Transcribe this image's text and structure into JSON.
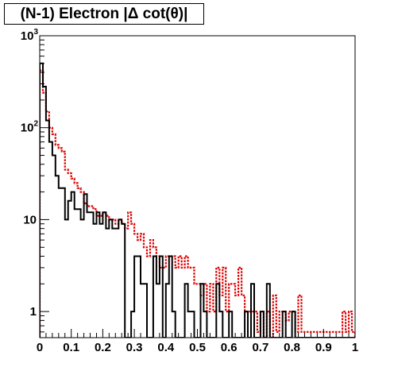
{
  "chart_data": {
    "type": "line",
    "title": "(N-1) Electron |Δ cot(θ)|",
    "xlabel": "",
    "ylabel": "",
    "x_range": [
      0,
      1
    ],
    "y_range": [
      0.52,
      1000
    ],
    "y_scale": "log",
    "grid": false,
    "legend": "none",
    "x_ticks": [
      "0",
      "0.1",
      "0.2",
      "0.3",
      "0.4",
      "0.5",
      "0.6",
      "0.7",
      "0.8",
      "0.9",
      "1"
    ],
    "y_ticks": [
      {
        "value": 1,
        "label": "1"
      },
      {
        "value": 10,
        "label": "10"
      },
      {
        "value": 100,
        "label": "10",
        "exp": "2"
      },
      {
        "value": 1000,
        "label": "10",
        "exp": "3"
      }
    ],
    "bin_width": 0.01,
    "series": [
      {
        "color": "#000000",
        "style": "solid",
        "values": [
          500,
          280,
          120,
          70,
          50,
          30,
          22,
          22,
          10,
          16,
          20,
          13,
          13,
          10,
          19,
          12,
          12,
          9,
          12,
          9,
          12,
          8,
          10,
          8,
          8,
          10,
          9,
          0,
          0,
          1,
          4,
          4,
          2,
          2,
          0,
          0,
          4,
          2,
          4,
          0,
          2,
          4,
          1,
          0,
          0,
          0,
          2,
          1,
          1,
          0,
          0,
          2,
          1,
          0,
          0,
          0,
          2,
          1,
          0,
          0,
          1,
          0,
          0,
          0,
          0,
          1,
          0,
          2,
          0,
          0,
          1,
          0,
          2,
          0,
          0,
          0,
          0,
          1,
          0,
          0,
          1,
          0,
          0,
          0,
          0,
          0,
          0,
          0,
          0,
          0,
          0,
          0,
          0,
          0,
          0,
          0,
          0,
          0,
          0,
          0
        ]
      },
      {
        "color": "#dd0000",
        "style": "dotted",
        "values": [
          420,
          240,
          150,
          100,
          85,
          65,
          60,
          55,
          35,
          32,
          28,
          25,
          22,
          20,
          15,
          14,
          14,
          13,
          11,
          11,
          12,
          11,
          10,
          10,
          9,
          10,
          9,
          8,
          12,
          9,
          7,
          6,
          7,
          5,
          4,
          6,
          5,
          4,
          3,
          3,
          4,
          4,
          4,
          3,
          4,
          3,
          4,
          3,
          3,
          2,
          2,
          1.5,
          2,
          1,
          2,
          1,
          3,
          1.5,
          3,
          1,
          2,
          2,
          1.5,
          3,
          1.5,
          1,
          1,
          1,
          1,
          0.6,
          1,
          0.5,
          1,
          0.5,
          1.5,
          0.6,
          1,
          1,
          0.8,
          1,
          1,
          0.6,
          1.5,
          0.6,
          0.6,
          0.6,
          0.6,
          0.6,
          0.6,
          0.6,
          0.6,
          0.6,
          0.6,
          0.6,
          0.6,
          0.6,
          1,
          0.6,
          1,
          0.6
        ]
      }
    ]
  }
}
